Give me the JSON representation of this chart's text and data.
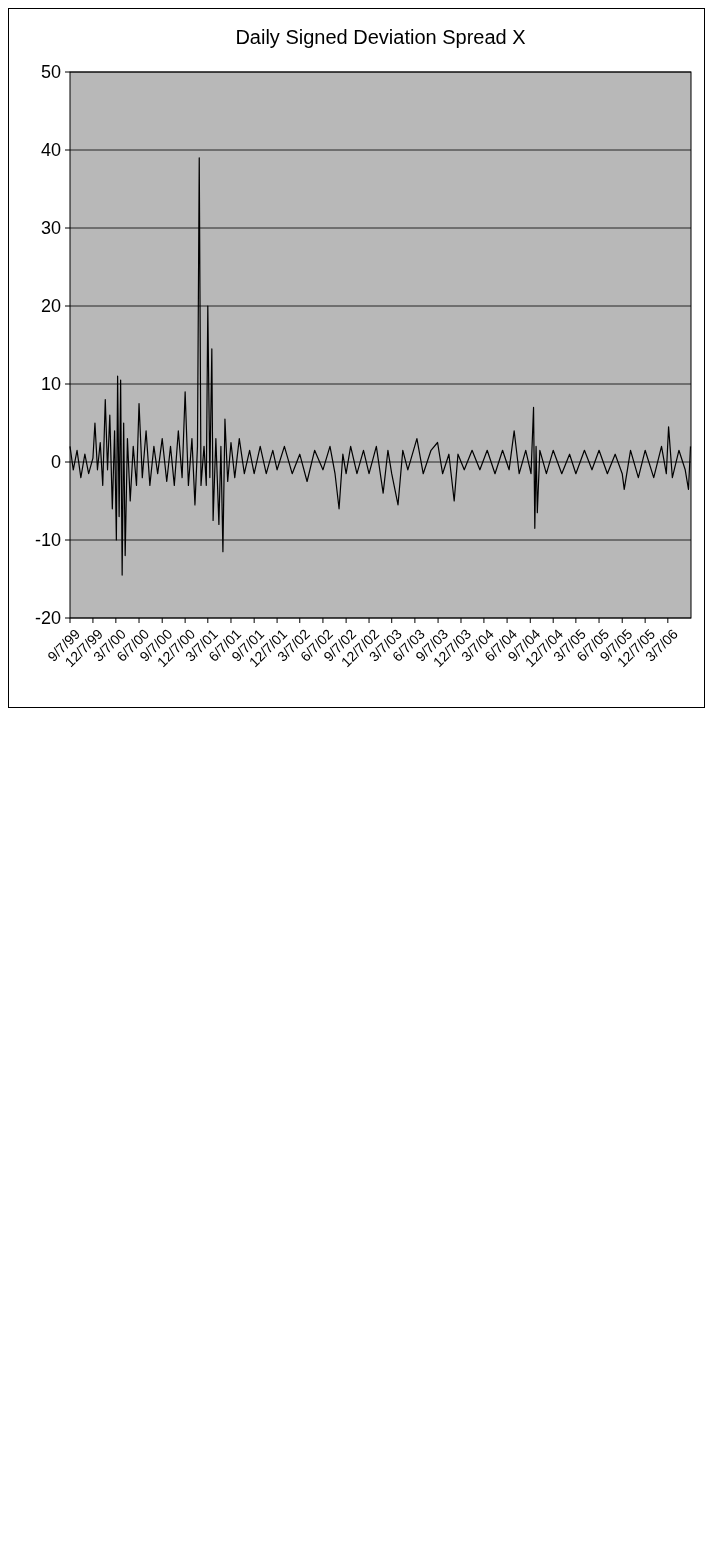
{
  "chart_data": {
    "type": "line",
    "title": "Daily Signed Deviation Spread X",
    "x": [
      "1999-09-07",
      "1999-09-20",
      "1999-10-05",
      "1999-10-20",
      "1999-11-05",
      "1999-11-20",
      "1999-12-07",
      "1999-12-15",
      "1999-12-25",
      "2000-01-05",
      "2000-01-15",
      "2000-01-25",
      "2000-02-03",
      "2000-02-12",
      "2000-02-22",
      "2000-03-02",
      "2000-03-09",
      "2000-03-14",
      "2000-03-20",
      "2000-03-26",
      "2000-04-01",
      "2000-04-07",
      "2000-04-13",
      "2000-04-22",
      "2000-05-03",
      "2000-05-15",
      "2000-05-28",
      "2000-06-07",
      "2000-06-20",
      "2000-07-05",
      "2000-07-20",
      "2000-08-05",
      "2000-08-20",
      "2000-09-07",
      "2000-09-25",
      "2000-10-10",
      "2000-10-25",
      "2000-11-10",
      "2000-11-25",
      "2000-12-07",
      "2000-12-20",
      "2001-01-03",
      "2001-01-15",
      "2001-01-25",
      "2001-02-01",
      "2001-02-08",
      "2001-02-20",
      "2001-03-01",
      "2001-03-07",
      "2001-03-15",
      "2001-03-23",
      "2001-03-28",
      "2001-04-08",
      "2001-04-20",
      "2001-04-28",
      "2001-05-06",
      "2001-05-14",
      "2001-05-25",
      "2001-06-07",
      "2001-06-22",
      "2001-07-10",
      "2001-07-30",
      "2001-08-20",
      "2001-09-07",
      "2001-10-01",
      "2001-10-25",
      "2001-11-20",
      "2001-12-07",
      "2002-01-05",
      "2002-02-05",
      "2002-03-07",
      "2002-04-05",
      "2002-05-05",
      "2002-06-07",
      "2002-07-05",
      "2002-07-25",
      "2002-08-10",
      "2002-08-25",
      "2002-09-07",
      "2002-09-25",
      "2002-10-20",
      "2002-11-15",
      "2002-12-07",
      "2003-01-05",
      "2003-02-01",
      "2003-02-20",
      "2003-03-07",
      "2003-04-01",
      "2003-04-20",
      "2003-05-10",
      "2003-06-15",
      "2003-07-10",
      "2003-08-10",
      "2003-09-05",
      "2003-09-25",
      "2003-10-20",
      "2003-11-10",
      "2003-11-25",
      "2003-12-20",
      "2004-01-20",
      "2004-02-20",
      "2004-03-20",
      "2004-04-20",
      "2004-05-20",
      "2004-06-15",
      "2004-07-05",
      "2004-07-25",
      "2004-08-20",
      "2004-09-10",
      "2004-09-20",
      "2004-09-25",
      "2004-09-30",
      "2004-10-05",
      "2004-10-15",
      "2004-11-10",
      "2004-12-07",
      "2005-01-10",
      "2005-02-10",
      "2005-03-07",
      "2005-04-10",
      "2005-05-10",
      "2005-06-07",
      "2005-07-10",
      "2005-08-10",
      "2005-09-07",
      "2005-09-15",
      "2005-10-10",
      "2005-11-10",
      "2005-12-07",
      "2006-01-10",
      "2006-02-10",
      "2006-03-01",
      "2006-03-10",
      "2006-03-25",
      "2006-04-20",
      "2006-05-15",
      "2006-05-28",
      "2006-06-05"
    ],
    "series": [
      {
        "color": "#000000",
        "values": [
          2,
          -1,
          1.5,
          -2,
          1,
          -1.5,
          0.5,
          5,
          -1,
          2.5,
          -3,
          8,
          -1,
          6,
          -6,
          4,
          -10,
          11,
          -7,
          10.5,
          -14.5,
          5,
          -12,
          3,
          -5,
          2,
          -3,
          7.5,
          -2,
          4,
          -3,
          2,
          -1.5,
          3,
          -2.5,
          2,
          -3,
          4,
          -2,
          9,
          -3,
          3,
          -5.5,
          2,
          39,
          -3,
          2,
          -3,
          20,
          -2,
          14.5,
          -7.5,
          3,
          -8,
          2,
          -11.5,
          5.5,
          -2.5,
          2.5,
          -2,
          3,
          -1.5,
          1.5,
          -1.5,
          2,
          -1.5,
          1.5,
          -1,
          2,
          -1.5,
          1,
          -2.5,
          1.5,
          -1,
          2,
          -1.5,
          -6,
          1,
          -1.5,
          2,
          -1.5,
          1.5,
          -1.5,
          2,
          -4,
          1.5,
          -1.5,
          -5.5,
          1.5,
          -1,
          3,
          -1.5,
          1.5,
          2.5,
          -1.5,
          1,
          -5,
          1,
          -1,
          1.5,
          -1,
          1.5,
          -1.5,
          1.5,
          -1,
          4,
          -1.5,
          1.5,
          -1.5,
          7,
          -8.5,
          2,
          -6.5,
          1.5,
          -1.5,
          1.5,
          -1.5,
          1,
          -1.5,
          1.5,
          -1,
          1.5,
          -1.5,
          1,
          -1.5,
          -3.5,
          1.5,
          -2,
          1.5,
          -2,
          2,
          -1.5,
          4.5,
          -2,
          1.5,
          -1,
          -3.5,
          2
        ]
      }
    ],
    "xlim": [
      "1999-09-07",
      "2006-06-07"
    ],
    "xticks": [
      {
        "value": "1999-09-07",
        "label": "9/7/99"
      },
      {
        "value": "1999-12-07",
        "label": "12/7/99"
      },
      {
        "value": "2000-03-07",
        "label": "3/7/00"
      },
      {
        "value": "2000-06-07",
        "label": "6/7/00"
      },
      {
        "value": "2000-09-07",
        "label": "9/7/00"
      },
      {
        "value": "2000-12-07",
        "label": "12/7/00"
      },
      {
        "value": "2001-03-07",
        "label": "3/7/01"
      },
      {
        "value": "2001-06-07",
        "label": "6/7/01"
      },
      {
        "value": "2001-09-07",
        "label": "9/7/01"
      },
      {
        "value": "2001-12-07",
        "label": "12/7/01"
      },
      {
        "value": "2002-03-07",
        "label": "3/7/02"
      },
      {
        "value": "2002-06-07",
        "label": "6/7/02"
      },
      {
        "value": "2002-09-07",
        "label": "9/7/02"
      },
      {
        "value": "2002-12-07",
        "label": "12/7/02"
      },
      {
        "value": "2003-03-07",
        "label": "3/7/03"
      },
      {
        "value": "2003-06-07",
        "label": "6/7/03"
      },
      {
        "value": "2003-09-07",
        "label": "9/7/03"
      },
      {
        "value": "2003-12-07",
        "label": "12/7/03"
      },
      {
        "value": "2004-03-07",
        "label": "3/7/04"
      },
      {
        "value": "2004-06-07",
        "label": "6/7/04"
      },
      {
        "value": "2004-09-07",
        "label": "9/7/04"
      },
      {
        "value": "2004-12-07",
        "label": "12/7/04"
      },
      {
        "value": "2005-03-07",
        "label": "3/7/05"
      },
      {
        "value": "2005-06-07",
        "label": "6/7/05"
      },
      {
        "value": "2005-09-07",
        "label": "9/7/05"
      },
      {
        "value": "2005-12-07",
        "label": "12/7/05"
      },
      {
        "value": "2006-03-07",
        "label": "3/7/06"
      }
    ],
    "ylim": [
      -20,
      50
    ],
    "yticks": [
      -20,
      -10,
      0,
      10,
      20,
      30,
      40,
      50
    ],
    "grid": "y",
    "marker": "none",
    "line_style": "solid"
  }
}
